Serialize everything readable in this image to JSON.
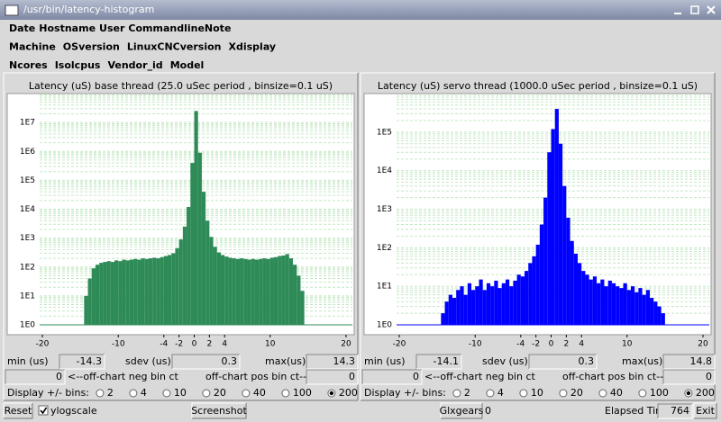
{
  "window": {
    "title": "/usr/bin/latency-histogram"
  },
  "header": {
    "rows": [
      [
        "Date",
        "Hostname",
        "User",
        "CommandlineNote"
      ],
      [
        "Machine",
        "OSversion",
        "LinuxCNCversion",
        "Xdisplay"
      ],
      [
        "Ncores",
        "Isolcpus",
        "Vendor_id",
        "Model"
      ]
    ]
  },
  "chart_data": [
    {
      "type": "histogram",
      "title": "Latency (uS) base thread (25.0 uSec period , binsize=0.1 uS)",
      "color": "#2e8b57",
      "log_scale": true,
      "grid": true,
      "bins": [
        -14.5,
        -14,
        -13.5,
        -13,
        -12.5,
        -12,
        -11.5,
        -11,
        -10.5,
        -10,
        -9.5,
        -9,
        -8.5,
        -8,
        -7.5,
        -7,
        -6.5,
        -6,
        -5.5,
        -5,
        -4.5,
        -4,
        -3.5,
        -3,
        -2.5,
        -2,
        -1.5,
        -1,
        -0.5,
        0,
        0.5,
        1,
        1.5,
        2,
        2.5,
        3,
        3.5,
        4,
        4.5,
        5,
        5.5,
        6,
        6.5,
        7,
        7.5,
        8,
        8.5,
        9,
        9.5,
        10,
        10.5,
        11,
        11.5,
        12,
        12.5,
        13,
        13.5,
        14,
        14.5
      ],
      "values": [
        10,
        40,
        90,
        120,
        140,
        150,
        160,
        150,
        170,
        160,
        180,
        170,
        180,
        190,
        180,
        200,
        190,
        200,
        210,
        200,
        220,
        240,
        260,
        300,
        450,
        900,
        2500,
        12000,
        400000,
        25000000,
        900000,
        40000,
        4000,
        1100,
        500,
        320,
        260,
        230,
        210,
        200,
        190,
        200,
        190,
        180,
        190,
        180,
        190,
        200,
        190,
        210,
        220,
        240,
        250,
        280,
        200,
        120,
        50,
        15
      ],
      "xlim": [
        -20,
        20
      ],
      "xticks": [
        -20,
        -10,
        -4,
        -2,
        0,
        2,
        4,
        10,
        20
      ],
      "ylim": [
        1,
        100000000
      ],
      "yticks": [
        {
          "value": 1,
          "label": "1E0"
        },
        {
          "value": 10,
          "label": "1E1"
        },
        {
          "value": 100,
          "label": "1E2"
        },
        {
          "value": 1000,
          "label": "1E3"
        },
        {
          "value": 10000,
          "label": "1E4"
        },
        {
          "value": 100000,
          "label": "1E5"
        },
        {
          "value": 1000000,
          "label": "1E6"
        },
        {
          "value": 10000000,
          "label": "1E7"
        }
      ]
    },
    {
      "type": "histogram",
      "title": "Latency (uS) servo thread (1000.0 uSec period , binsize=0.1 uS)",
      "color": "#0000ff",
      "log_scale": true,
      "grid": true,
      "bins": [
        -14.5,
        -14,
        -13.5,
        -13,
        -12.5,
        -12,
        -11.5,
        -11,
        -10.5,
        -10,
        -9.5,
        -9,
        -8.5,
        -8,
        -7.5,
        -7,
        -6.5,
        -6,
        -5.5,
        -5,
        -4.5,
        -4,
        -3.5,
        -3,
        -2.5,
        -2,
        -1.5,
        -1,
        -0.5,
        0,
        0.5,
        1,
        1.5,
        2,
        2.5,
        3,
        3.5,
        4,
        4.5,
        5,
        5.5,
        6,
        6.5,
        7,
        7.5,
        8,
        8.5,
        9,
        9.5,
        10,
        10.5,
        11,
        11.5,
        12,
        12.5,
        13,
        13.5,
        14,
        14.5,
        15
      ],
      "values": [
        2,
        4,
        6,
        5,
        8,
        10,
        6,
        12,
        8,
        10,
        15,
        8,
        12,
        10,
        14,
        9,
        12,
        15,
        10,
        14,
        20,
        18,
        25,
        40,
        60,
        120,
        400,
        2000,
        30000,
        120000,
        400000,
        50000,
        4000,
        600,
        150,
        70,
        40,
        25,
        20,
        15,
        18,
        12,
        15,
        10,
        14,
        12,
        10,
        9,
        12,
        8,
        10,
        7,
        9,
        6,
        8,
        5,
        4,
        3,
        2
      ],
      "xlim": [
        -20,
        20
      ],
      "xticks": [
        -20,
        -10,
        -4,
        -2,
        0,
        2,
        4,
        10,
        20
      ],
      "ylim": [
        1,
        1000000
      ],
      "yticks": [
        {
          "value": 1,
          "label": "1E0"
        },
        {
          "value": 10,
          "label": "1E1"
        },
        {
          "value": 100,
          "label": "1E2"
        },
        {
          "value": 1000,
          "label": "1E3"
        },
        {
          "value": 10000,
          "label": "1E4"
        },
        {
          "value": 100000,
          "label": "1E5"
        }
      ]
    }
  ],
  "panels": [
    {
      "min_label": "min (us)",
      "min": -14.3,
      "sdev_label": "sdev (us):",
      "sdev": 0.3,
      "max_label": "max(us):",
      "max": 14.3,
      "neg_ct": 0,
      "neg_label": "<--off-chart neg bin ct",
      "pos_label": "off-chart pos bin ct-->",
      "pos_ct": 0,
      "bins_label": "Display +/- bins:",
      "bin_options": [
        2,
        4,
        10,
        20,
        40,
        100,
        200
      ],
      "selected_option": 6
    },
    {
      "min_label": "min (us)",
      "min": -14.1,
      "sdev_label": "sdev (us):",
      "sdev": 0.3,
      "max_label": "max(us):",
      "max": 14.8,
      "neg_ct": 0,
      "neg_label": "<--off-chart neg bin ct",
      "pos_label": "off-chart pos bin ct-->",
      "pos_ct": 0,
      "bins_label": "Display +/- bins:",
      "bin_options": [
        2,
        4,
        10,
        20,
        40,
        100,
        200
      ],
      "selected_option": 6
    }
  ],
  "footer": {
    "reset": "Reset",
    "ylogscale": "ylogscale",
    "ylogscale_checked": true,
    "screenshot": "Screenshot",
    "glxgears": "Glxgears",
    "glxgears_count": 0,
    "elapsed_label": "Elapsed Time:",
    "elapsed": 764,
    "exit": "Exit"
  }
}
